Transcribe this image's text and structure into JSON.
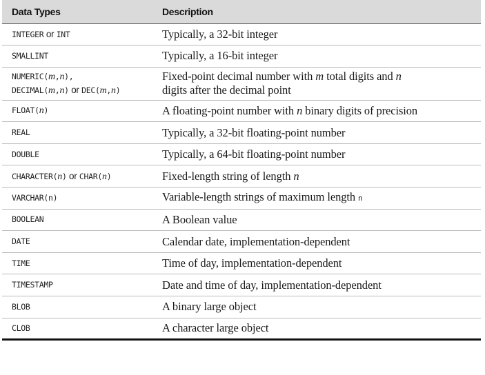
{
  "table": {
    "headers": [
      "Data Types",
      "Description"
    ],
    "rows": [
      {
        "type": [
          {
            "m": "INTEGER"
          },
          {
            "o": " or "
          },
          {
            "m": "INT"
          }
        ],
        "desc": [
          {
            "t": "Typically, a 32-bit integer"
          }
        ]
      },
      {
        "type": [
          {
            "m": "SMALLINT"
          }
        ],
        "desc": [
          {
            "t": "Typically, a 16-bit integer"
          }
        ]
      },
      {
        "type": [
          {
            "m": "NUMERIC("
          },
          {
            "i": "m"
          },
          {
            "m": ","
          },
          {
            "i": "n"
          },
          {
            "m": "),"
          },
          {
            "br": true
          },
          {
            "m": "DECIMAL("
          },
          {
            "i": "m"
          },
          {
            "m": ","
          },
          {
            "i": "n"
          },
          {
            "m": ")"
          },
          {
            "o": " or "
          },
          {
            "m": "DEC("
          },
          {
            "i": "m"
          },
          {
            "m": ","
          },
          {
            "i": "n"
          },
          {
            "m": ")"
          }
        ],
        "desc": [
          {
            "t": "Fixed-point decimal number with "
          },
          {
            "i": "m"
          },
          {
            "t": " total digits and "
          },
          {
            "i": "n"
          },
          {
            "br": true
          },
          {
            "t": "digits after the decimal point"
          }
        ],
        "tall": true
      },
      {
        "type": [
          {
            "m": "FLOAT("
          },
          {
            "i": "n"
          },
          {
            "m": ")"
          }
        ],
        "desc": [
          {
            "t": "A floating-point number with "
          },
          {
            "i": "n"
          },
          {
            "t": " binary digits of precision"
          }
        ]
      },
      {
        "type": [
          {
            "m": "REAL"
          }
        ],
        "desc": [
          {
            "t": "Typically, a 32-bit floating-point number"
          }
        ]
      },
      {
        "type": [
          {
            "m": "DOUBLE"
          }
        ],
        "desc": [
          {
            "t": "Typically, a 64-bit floating-point number"
          }
        ]
      },
      {
        "type": [
          {
            "m": "CHARACTER("
          },
          {
            "i": "n"
          },
          {
            "m": ")"
          },
          {
            "o": " or "
          },
          {
            "m": "CHAR("
          },
          {
            "i": "n"
          },
          {
            "m": ")"
          }
        ],
        "desc": [
          {
            "t": "Fixed-length string of length "
          },
          {
            "i": "n"
          }
        ]
      },
      {
        "type": [
          {
            "m": "VARCHAR(n)"
          }
        ],
        "desc": [
          {
            "t": "Variable-length strings of maximum length "
          },
          {
            "m": "n"
          }
        ]
      },
      {
        "type": [
          {
            "m": "BOOLEAN"
          }
        ],
        "desc": [
          {
            "t": "A Boolean value"
          }
        ]
      },
      {
        "type": [
          {
            "m": "DATE"
          }
        ],
        "desc": [
          {
            "t": "Calendar date, implementation-dependent"
          }
        ]
      },
      {
        "type": [
          {
            "m": "TIME"
          }
        ],
        "desc": [
          {
            "t": "Time of day, implementation-dependent"
          }
        ]
      },
      {
        "type": [
          {
            "m": "TIMESTAMP"
          }
        ],
        "desc": [
          {
            "t": "Date and time of day, implementation-dependent"
          }
        ]
      },
      {
        "type": [
          {
            "m": "BLOB"
          }
        ],
        "desc": [
          {
            "t": "A binary large object"
          }
        ]
      },
      {
        "type": [
          {
            "m": "CLOB"
          }
        ],
        "desc": [
          {
            "t": "A character large object"
          }
        ]
      }
    ]
  }
}
